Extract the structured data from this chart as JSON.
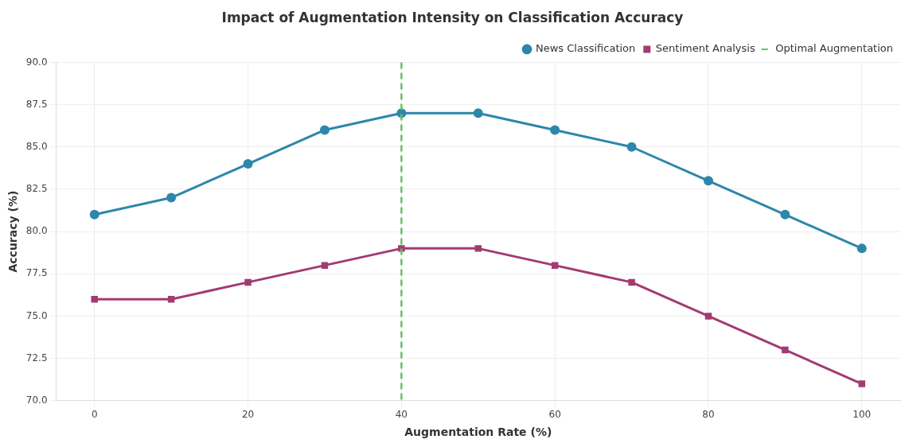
{
  "chart_data": {
    "type": "line",
    "title": "Impact of Augmentation Intensity on Classification Accuracy",
    "xlabel": "Augmentation Rate (%)",
    "ylabel": "Accuracy (%)",
    "x": [
      0,
      10,
      20,
      30,
      40,
      50,
      60,
      70,
      80,
      90,
      100
    ],
    "series": [
      {
        "name": "News Classification",
        "color": "#2e86ab",
        "marker": "circle",
        "values": [
          81,
          82,
          84,
          86,
          87,
          87,
          86,
          85,
          83,
          81,
          79
        ]
      },
      {
        "name": "Sentiment Analysis",
        "color": "#a23b72",
        "marker": "square",
        "values": [
          76,
          76,
          77,
          78,
          79,
          79,
          78,
          77,
          75,
          73,
          71
        ]
      }
    ],
    "xlim": [
      -5,
      105
    ],
    "xticks": [
      0,
      20,
      40,
      60,
      80,
      100
    ],
    "ylim": [
      70,
      90
    ],
    "yticks": [
      {
        "value": 70,
        "label": "70.0"
      },
      {
        "value": 72.5,
        "label": "72.5"
      },
      {
        "value": 75,
        "label": "75.0"
      },
      {
        "value": 77.5,
        "label": "77.5"
      },
      {
        "value": 80,
        "label": "80.0"
      },
      {
        "value": 82.5,
        "label": "82.5"
      },
      {
        "value": 85,
        "label": "85.0"
      },
      {
        "value": 87.5,
        "label": "87.5"
      },
      {
        "value": 90,
        "label": "90.0"
      }
    ],
    "ref_lines": [
      {
        "axis": "x",
        "value": 40,
        "label": "Optimal Augmentation",
        "color": "#6abf69",
        "line_style": "dashed"
      }
    ],
    "grid": true,
    "legend": "top right",
    "line_style": "solid"
  }
}
